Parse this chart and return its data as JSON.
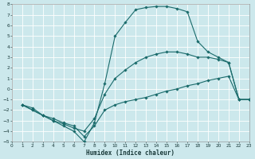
{
  "xlabel": "Humidex (Indice chaleur)",
  "bg_color": "#cce8ec",
  "grid_color": "#ffffff",
  "line_color": "#1a6b6b",
  "xlim": [
    0,
    23
  ],
  "ylim": [
    -5,
    8
  ],
  "xticks": [
    0,
    1,
    2,
    3,
    4,
    5,
    6,
    7,
    8,
    9,
    10,
    11,
    12,
    13,
    14,
    15,
    16,
    17,
    18,
    19,
    20,
    21,
    22,
    23
  ],
  "yticks": [
    -5,
    -4,
    -3,
    -2,
    -1,
    0,
    1,
    2,
    3,
    4,
    5,
    6,
    7,
    8
  ],
  "curve_arch_x": [
    1,
    2,
    3,
    4,
    5,
    6,
    7,
    8,
    9,
    10,
    11,
    12,
    13,
    14,
    15,
    16,
    17,
    18,
    19,
    20,
    21,
    22,
    23
  ],
  "curve_arch_y": [
    -1.5,
    -2.0,
    -2.5,
    -3.0,
    -3.5,
    -4.0,
    -5.0,
    -3.2,
    0.5,
    5.0,
    6.3,
    7.5,
    7.7,
    7.8,
    7.8,
    7.6,
    7.3,
    4.5,
    3.5,
    3.0,
    2.5,
    -1.0,
    -1.0
  ],
  "curve_mid_x": [
    1,
    2,
    3,
    4,
    5,
    6,
    7,
    8,
    9,
    10,
    11,
    12,
    13,
    14,
    15,
    16,
    17,
    18,
    19,
    20,
    21,
    22,
    23
  ],
  "curve_mid_y": [
    -1.5,
    -2.0,
    -2.5,
    -3.0,
    -3.3,
    -3.7,
    -4.0,
    -2.8,
    -0.5,
    1.0,
    1.8,
    2.5,
    3.0,
    3.3,
    3.5,
    3.5,
    3.3,
    3.0,
    3.0,
    2.8,
    2.5,
    -1.0,
    -1.0
  ],
  "curve_low_x": [
    1,
    2,
    3,
    4,
    5,
    6,
    7,
    8,
    9,
    10,
    11,
    12,
    13,
    14,
    15,
    16,
    17,
    18,
    19,
    20,
    21,
    22,
    23
  ],
  "curve_low_y": [
    -1.5,
    -1.8,
    -2.5,
    -2.8,
    -3.2,
    -3.5,
    -4.5,
    -3.5,
    -2.0,
    -1.5,
    -1.2,
    -1.0,
    -0.8,
    -0.5,
    -0.2,
    0.0,
    0.3,
    0.5,
    0.8,
    1.0,
    1.2,
    -1.0,
    -1.0
  ]
}
